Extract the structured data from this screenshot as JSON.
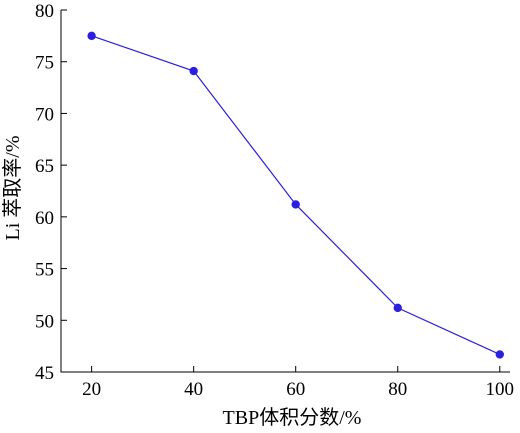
{
  "chart_data": {
    "type": "line",
    "xlabel": "TBP体积分数/%",
    "ylabel": "Li 萃取率/%",
    "x": [
      20,
      40,
      60,
      80,
      100
    ],
    "xticks": [
      20,
      40,
      60,
      80,
      100
    ],
    "xlim": [
      14,
      102
    ],
    "yticks": [
      45,
      50,
      55,
      60,
      65,
      70,
      75,
      80
    ],
    "ylim": [
      45,
      80
    ],
    "grid": false,
    "series": [
      {
        "values": [
          77.5,
          74.1,
          61.2,
          51.2,
          46.7
        ],
        "color": "#2b1fe0"
      }
    ]
  }
}
